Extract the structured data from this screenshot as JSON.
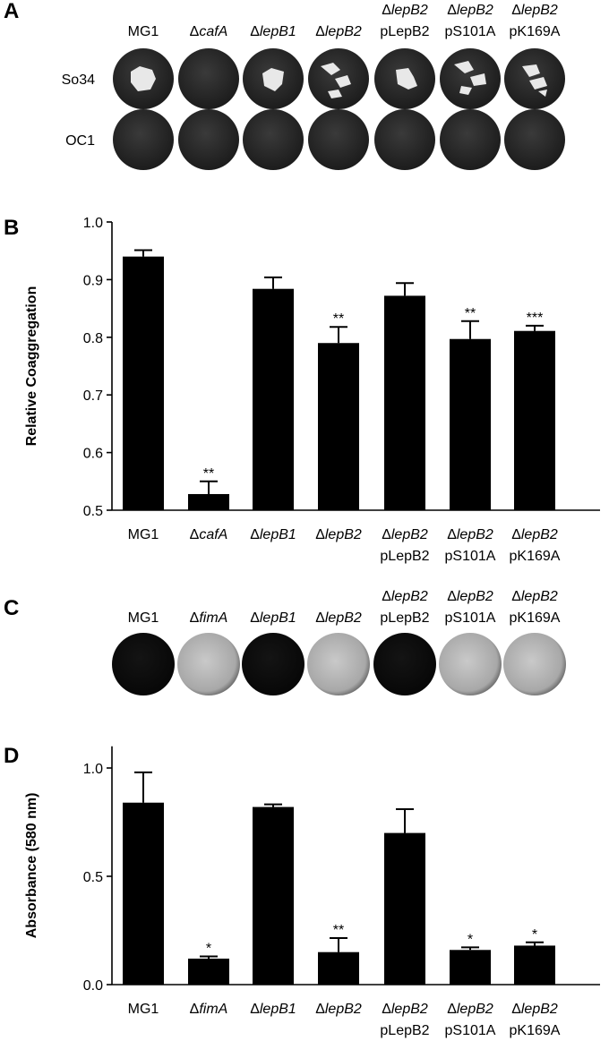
{
  "panel_a": {
    "letter": "A",
    "columns": [
      [
        "MG1"
      ],
      [
        "ΔcafA"
      ],
      [
        "ΔlepB1"
      ],
      [
        "ΔlepB2"
      ],
      [
        "ΔlepB2",
        "pLepB2"
      ],
      [
        "ΔlepB2",
        "pS101A"
      ],
      [
        "ΔlepB2",
        "pK169A"
      ]
    ],
    "rows": [
      "So34",
      "OC1"
    ]
  },
  "chart_data": [
    {
      "type": "bar",
      "panel_label": "B",
      "ylabel": "Relative Coaggregation",
      "categories": [
        [
          "MG1"
        ],
        [
          "ΔcafA"
        ],
        [
          "ΔlepB1"
        ],
        [
          "ΔlepB2"
        ],
        [
          "ΔlepB2",
          "pLepB2"
        ],
        [
          "ΔlepB2",
          "pS101A"
        ],
        [
          "ΔlepB2",
          "pK169A"
        ]
      ],
      "values": [
        0.94,
        0.528,
        0.884,
        0.79,
        0.872,
        0.797,
        0.811
      ],
      "errors": [
        0.011,
        0.022,
        0.02,
        0.028,
        0.022,
        0.031,
        0.009
      ],
      "annotations": [
        null,
        "**",
        null,
        "**",
        null,
        "**",
        "***"
      ],
      "color": "#000000",
      "ylim": [
        0.5,
        1.0
      ],
      "yticks": [
        0.5,
        0.6,
        0.7,
        0.8,
        0.9,
        {
          "value": 1,
          "label": "1.0"
        }
      ]
    },
    {
      "type": "bar",
      "panel_label": "D",
      "ylabel": "Absorbance (580 nm)",
      "categories": [
        [
          "MG1"
        ],
        [
          "ΔfimA"
        ],
        [
          "ΔlepB1"
        ],
        [
          "ΔlepB2"
        ],
        [
          "ΔlepB2",
          "pLepB2"
        ],
        [
          "ΔlepB2",
          "pS101A"
        ],
        [
          "ΔlepB2",
          "pK169A"
        ]
      ],
      "values": [
        0.84,
        0.12,
        0.82,
        0.15,
        0.7,
        0.16,
        0.18
      ],
      "errors": [
        0.14,
        0.01,
        0.012,
        0.065,
        0.11,
        0.012,
        0.015
      ],
      "annotations": [
        null,
        "*",
        null,
        "**",
        null,
        "*",
        "*"
      ],
      "color": "#000000",
      "ylim": [
        0,
        1.1
      ],
      "yticks": [
        {
          "value": 0,
          "label": "0.0"
        },
        0.5,
        {
          "value": 1,
          "label": "1.0"
        }
      ]
    }
  ],
  "panel_c": {
    "letter": "C",
    "columns": [
      [
        "MG1"
      ],
      [
        "ΔfimA"
      ],
      [
        "ΔlepB1"
      ],
      [
        "ΔlepB2"
      ],
      [
        "ΔlepB2",
        "pLepB2"
      ],
      [
        "ΔlepB2",
        "pS101A"
      ],
      [
        "ΔlepB2",
        "pK169A"
      ]
    ]
  }
}
